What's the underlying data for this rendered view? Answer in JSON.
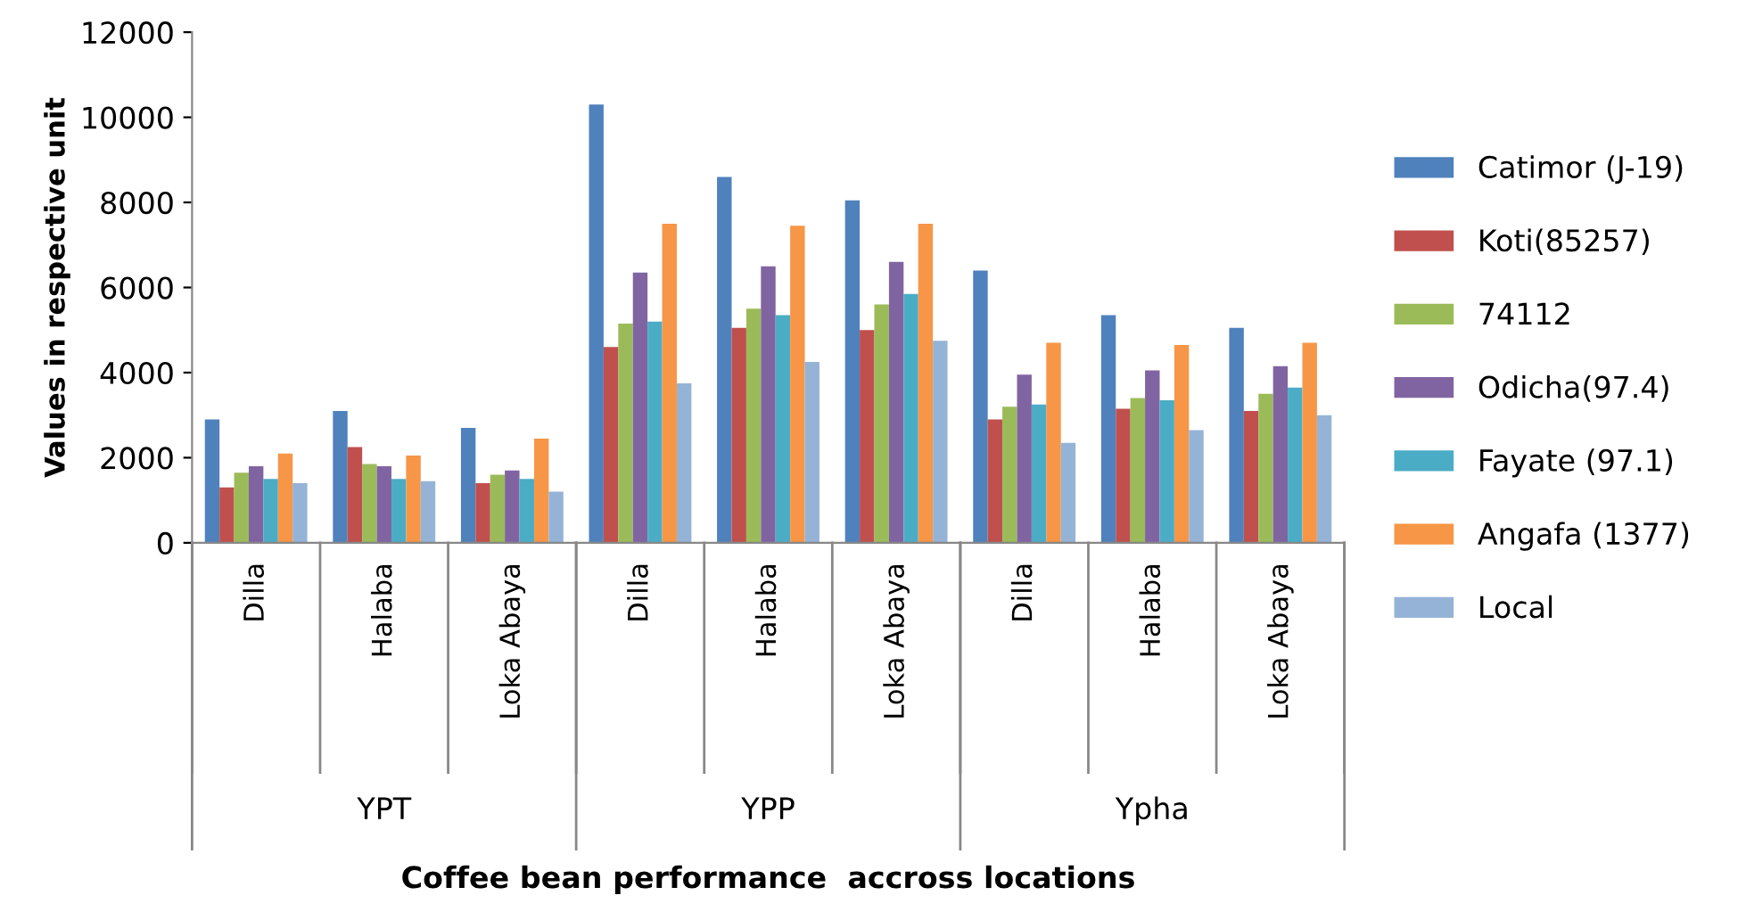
{
  "chart_data": {
    "type": "bar",
    "xlabel": "Coffee bean performance  accross locations",
    "ylabel": "Values in respective unit",
    "categories": [
      "Dilla",
      "Halaba",
      "Loka Abaya",
      "Dilla",
      "Halaba",
      "Loka Abaya",
      "Dilla",
      "Halaba",
      "Loka Abaya"
    ],
    "annotations": [
      "YPT",
      "YPP",
      "Ypha"
    ],
    "ylim": [
      0,
      12000
    ],
    "yticks": [
      0,
      2000,
      4000,
      6000,
      8000,
      10000,
      12000
    ],
    "grid": false,
    "legend": "right",
    "series": [
      {
        "name": "Catimor (J-19)",
        "color": "#4f81bd",
        "values": [
          2900,
          3100,
          2700,
          10300,
          8600,
          8050,
          6400,
          5350,
          5050
        ]
      },
      {
        "name": "Koti(85257)",
        "color": "#c0504d",
        "values": [
          1300,
          2250,
          1400,
          4600,
          5050,
          5000,
          2900,
          3150,
          3100
        ]
      },
      {
        "name": "74112",
        "color": "#9bbb59",
        "values": [
          1650,
          1850,
          1600,
          5150,
          5500,
          5600,
          3200,
          3400,
          3500
        ]
      },
      {
        "name": "Odicha(97.4)",
        "color": "#8064a2",
        "values": [
          1800,
          1800,
          1700,
          6350,
          6500,
          6600,
          3950,
          4050,
          4150
        ]
      },
      {
        "name": "Fayate (97.1)",
        "color": "#4bacc6",
        "values": [
          1500,
          1500,
          1500,
          5200,
          5350,
          5850,
          3250,
          3350,
          3650
        ]
      },
      {
        "name": "Angafa (1377)",
        "color": "#f79646",
        "values": [
          2100,
          2050,
          2450,
          7500,
          7450,
          7500,
          4700,
          4650,
          4700
        ]
      },
      {
        "name": "Local",
        "color": "#95b3d7",
        "values": [
          1400,
          1450,
          1200,
          3750,
          4250,
          4750,
          2350,
          2650,
          3000
        ]
      }
    ]
  }
}
